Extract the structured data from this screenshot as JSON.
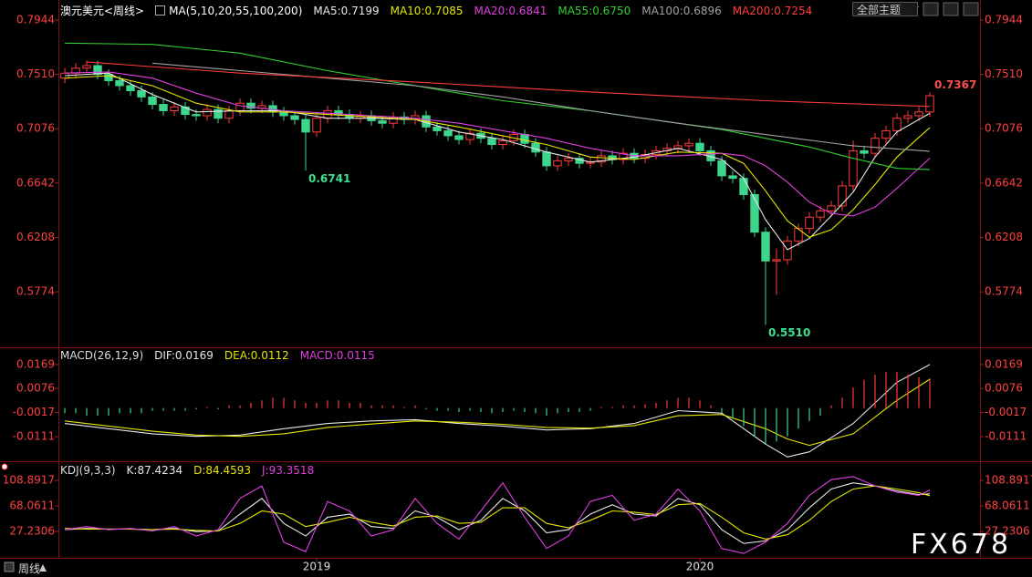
{
  "ui": {
    "theme_menu": "全部主题",
    "timeframe": "周线",
    "watermark": "FX678"
  },
  "chart_data": [
    {
      "type": "candlestick",
      "title": "澳元美元<周线>",
      "subtitle": "MA(5,10,20,55,100,200)",
      "up_color": "#ff3c3c",
      "down_color": "#3ed68c",
      "open": [
        0.748,
        0.752,
        0.756,
        0.758,
        0.751,
        0.746,
        0.742,
        0.738,
        0.733,
        0.727,
        0.722,
        0.725,
        0.719,
        0.718,
        0.723,
        0.716,
        0.722,
        0.728,
        0.724,
        0.726,
        0.721,
        0.718,
        0.715,
        0.705,
        0.716,
        0.722,
        0.719,
        0.716,
        0.718,
        0.714,
        0.712,
        0.717,
        0.715,
        0.718,
        0.709,
        0.706,
        0.702,
        0.699,
        0.704,
        0.7,
        0.695,
        0.698,
        0.703,
        0.696,
        0.689,
        0.678,
        0.682,
        0.684,
        0.68,
        0.681,
        0.686,
        0.683,
        0.688,
        0.684,
        0.687,
        0.69,
        0.692,
        0.694,
        0.696,
        0.69,
        0.682,
        0.67,
        0.668,
        0.655,
        0.625,
        0.602,
        0.603,
        0.618,
        0.628,
        0.637,
        0.642,
        0.646,
        0.662,
        0.69,
        0.688,
        0.7,
        0.706,
        0.716,
        0.718,
        0.721
      ],
      "high": [
        0.756,
        0.76,
        0.762,
        0.762,
        0.755,
        0.75,
        0.746,
        0.742,
        0.737,
        0.731,
        0.729,
        0.729,
        0.723,
        0.727,
        0.727,
        0.726,
        0.732,
        0.732,
        0.73,
        0.73,
        0.725,
        0.722,
        0.719,
        0.72,
        0.726,
        0.726,
        0.723,
        0.722,
        0.722,
        0.718,
        0.721,
        0.721,
        0.722,
        0.722,
        0.713,
        0.71,
        0.706,
        0.708,
        0.708,
        0.704,
        0.702,
        0.707,
        0.707,
        0.7,
        0.693,
        0.686,
        0.688,
        0.688,
        0.685,
        0.69,
        0.69,
        0.692,
        0.692,
        0.691,
        0.694,
        0.696,
        0.698,
        0.7,
        0.7,
        0.694,
        0.686,
        0.674,
        0.672,
        0.659,
        0.629,
        0.612,
        0.622,
        0.632,
        0.641,
        0.646,
        0.65,
        0.666,
        0.698,
        0.694,
        0.704,
        0.71,
        0.72,
        0.722,
        0.725,
        0.7367
      ],
      "low": [
        0.744,
        0.748,
        0.752,
        0.747,
        0.742,
        0.738,
        0.734,
        0.729,
        0.723,
        0.718,
        0.718,
        0.715,
        0.714,
        0.714,
        0.712,
        0.712,
        0.718,
        0.72,
        0.72,
        0.717,
        0.714,
        0.711,
        0.6741,
        0.701,
        0.712,
        0.715,
        0.712,
        0.712,
        0.71,
        0.708,
        0.708,
        0.711,
        0.711,
        0.705,
        0.702,
        0.698,
        0.695,
        0.695,
        0.696,
        0.691,
        0.691,
        0.694,
        0.692,
        0.685,
        0.674,
        0.674,
        0.678,
        0.676,
        0.676,
        0.677,
        0.679,
        0.679,
        0.68,
        0.68,
        0.683,
        0.686,
        0.688,
        0.69,
        0.686,
        0.678,
        0.666,
        0.664,
        0.651,
        0.621,
        0.551,
        0.575,
        0.599,
        0.614,
        0.624,
        0.633,
        0.638,
        0.642,
        0.658,
        0.684,
        0.684,
        0.696,
        0.702,
        0.712,
        0.714,
        0.717
      ],
      "close": [
        0.752,
        0.756,
        0.758,
        0.751,
        0.746,
        0.742,
        0.738,
        0.733,
        0.727,
        0.722,
        0.725,
        0.719,
        0.718,
        0.723,
        0.716,
        0.722,
        0.728,
        0.724,
        0.726,
        0.721,
        0.718,
        0.715,
        0.705,
        0.716,
        0.722,
        0.719,
        0.716,
        0.718,
        0.714,
        0.712,
        0.717,
        0.715,
        0.718,
        0.709,
        0.706,
        0.702,
        0.699,
        0.704,
        0.7,
        0.695,
        0.698,
        0.703,
        0.696,
        0.689,
        0.678,
        0.682,
        0.684,
        0.68,
        0.681,
        0.686,
        0.683,
        0.688,
        0.684,
        0.687,
        0.69,
        0.692,
        0.694,
        0.696,
        0.69,
        0.682,
        0.67,
        0.668,
        0.655,
        0.625,
        0.602,
        0.603,
        0.618,
        0.628,
        0.637,
        0.642,
        0.646,
        0.662,
        0.69,
        0.688,
        0.7,
        0.706,
        0.716,
        0.718,
        0.721,
        0.734
      ],
      "high_labels": [
        {
          "x": 79,
          "text": "0.7367"
        }
      ],
      "low_labels": [
        {
          "x": 22,
          "text": "0.6741"
        },
        {
          "x": 64,
          "text": "0.5510"
        }
      ],
      "series": [
        {
          "name": "MA5:0.7199",
          "color": "#e8e8e8",
          "x": [
            0,
            4,
            8,
            12,
            16,
            20,
            24,
            28,
            32,
            36,
            40,
            44,
            48,
            52,
            56,
            60,
            62,
            64,
            66,
            68,
            70,
            72,
            74,
            76,
            79
          ],
          "values": [
            0.75,
            0.752,
            0.735,
            0.721,
            0.722,
            0.722,
            0.716,
            0.716,
            0.715,
            0.705,
            0.699,
            0.689,
            0.681,
            0.685,
            0.692,
            0.683,
            0.668,
            0.635,
            0.611,
            0.62,
            0.638,
            0.657,
            0.685,
            0.705,
            0.7199
          ]
        },
        {
          "name": "MA10:0.7085",
          "color": "#e6e600",
          "x": [
            0,
            4,
            8,
            12,
            16,
            20,
            24,
            28,
            32,
            36,
            40,
            44,
            48,
            52,
            56,
            60,
            62,
            64,
            66,
            68,
            70,
            72,
            74,
            76,
            79
          ],
          "values": [
            0.748,
            0.75,
            0.742,
            0.728,
            0.721,
            0.721,
            0.719,
            0.717,
            0.715,
            0.709,
            0.702,
            0.695,
            0.685,
            0.683,
            0.689,
            0.688,
            0.68,
            0.658,
            0.634,
            0.621,
            0.627,
            0.643,
            0.663,
            0.685,
            0.7085
          ]
        },
        {
          "name": "MA20:0.6841",
          "color": "#e040e0",
          "x": [
            0,
            4,
            8,
            12,
            16,
            20,
            24,
            28,
            32,
            36,
            40,
            44,
            48,
            52,
            56,
            60,
            62,
            64,
            66,
            68,
            70,
            72,
            74,
            76,
            79
          ],
          "values": [
            0.752,
            0.753,
            0.748,
            0.736,
            0.726,
            0.722,
            0.72,
            0.718,
            0.716,
            0.712,
            0.706,
            0.7,
            0.692,
            0.686,
            0.686,
            0.688,
            0.686,
            0.678,
            0.665,
            0.649,
            0.64,
            0.638,
            0.645,
            0.66,
            0.6841
          ]
        },
        {
          "name": "MA55:0.6750",
          "color": "#30d030",
          "x": [
            0,
            8,
            16,
            24,
            32,
            40,
            48,
            56,
            60,
            64,
            68,
            72,
            76,
            79
          ],
          "values": [
            0.776,
            0.775,
            0.768,
            0.754,
            0.742,
            0.73,
            0.722,
            0.712,
            0.707,
            0.7,
            0.693,
            0.684,
            0.676,
            0.675
          ]
        },
        {
          "name": "MA100:0.6896",
          "color": "#a0a0a0",
          "x": [
            8,
            16,
            24,
            32,
            40,
            48,
            56,
            64,
            72,
            79
          ],
          "values": [
            0.76,
            0.754,
            0.748,
            0.742,
            0.733,
            0.722,
            0.712,
            0.703,
            0.694,
            0.6896
          ]
        },
        {
          "name": "MA200:0.7254",
          "color": "#ff3c3c",
          "x": [
            2,
            16,
            32,
            48,
            64,
            79
          ],
          "values": [
            0.761,
            0.752,
            0.745,
            0.737,
            0.73,
            0.7254
          ]
        }
      ],
      "xlim": [
        -0.5,
        83.5
      ],
      "ylim": [
        0.5338,
        0.7944
      ],
      "yticks": [
        0.5774,
        0.6208,
        0.6642,
        0.7076,
        {
          "value": 0.751,
          "label": "0.7510"
        },
        0.7944
      ],
      "xticks": [
        {
          "value": 23,
          "label": "2019"
        },
        {
          "value": 58,
          "label": "2020"
        }
      ]
    },
    {
      "type": "macd",
      "title": "MACD(26,12,9)",
      "series": [
        {
          "name": "DIF:0.0169",
          "color": "#e8e8e8",
          "x": [
            0,
            4,
            8,
            12,
            16,
            20,
            24,
            28,
            32,
            36,
            40,
            44,
            48,
            52,
            56,
            60,
            64,
            66,
            68,
            72,
            76,
            79
          ],
          "values": [
            -0.006,
            -0.008,
            -0.01,
            -0.011,
            -0.0105,
            -0.008,
            -0.006,
            -0.005,
            -0.0045,
            -0.006,
            -0.007,
            -0.0085,
            -0.008,
            -0.006,
            -0.001,
            -0.002,
            -0.014,
            -0.019,
            -0.017,
            -0.006,
            0.01,
            0.0169
          ]
        },
        {
          "name": "DEA:0.0112",
          "color": "#e6e600",
          "x": [
            0,
            4,
            8,
            12,
            16,
            20,
            24,
            28,
            32,
            36,
            40,
            44,
            48,
            52,
            56,
            60,
            64,
            66,
            68,
            72,
            76,
            79
          ],
          "values": [
            -0.005,
            -0.007,
            -0.009,
            -0.0105,
            -0.011,
            -0.01,
            -0.0075,
            -0.0062,
            -0.005,
            -0.0055,
            -0.0063,
            -0.0075,
            -0.0078,
            -0.0068,
            -0.003,
            -0.0025,
            -0.008,
            -0.012,
            -0.0145,
            -0.01,
            0.003,
            0.0112
          ]
        },
        {
          "name": "MACD:0.0115",
          "color": "#e040e0",
          "style": "bars",
          "up_color": "#ff3c3c",
          "down_color": "#3ed68c",
          "values": [
            -0.002,
            -0.002,
            -0.003,
            -0.003,
            -0.003,
            -0.002,
            -0.002,
            -0.002,
            -0.001,
            -0.001,
            -0.001,
            -0.001,
            -0.0005,
            0.0005,
            -0.0005,
            0.001,
            0.001,
            0.002,
            0.003,
            0.004,
            0.004,
            0.003,
            0.002,
            0.002,
            0.003,
            0.003,
            0.002,
            0.002,
            0.001,
            0.001,
            0.001,
            0.0005,
            0.001,
            -0.0005,
            -0.001,
            -0.001,
            -0.0015,
            -0.001,
            -0.0015,
            -0.002,
            -0.0015,
            -0.001,
            -0.0015,
            -0.002,
            -0.003,
            -0.002,
            -0.0015,
            -0.0015,
            -0.001,
            0.0005,
            0.0005,
            0.001,
            0.001,
            0.0015,
            0.002,
            0.003,
            0.004,
            0.004,
            0.003,
            0.001,
            -0.002,
            -0.004,
            -0.007,
            -0.011,
            -0.014,
            -0.013,
            -0.011,
            -0.008,
            -0.005,
            -0.003,
            0.001,
            0.004,
            0.008,
            0.011,
            0.013,
            0.014,
            0.014,
            0.013,
            0.012,
            0.0115
          ]
        }
      ],
      "xlim": [
        -0.5,
        83.5
      ],
      "ylim": [
        -0.0203,
        0.0229
      ],
      "yticks": [
        -0.0111,
        -0.0017,
        0.0076,
        0.0169
      ]
    },
    {
      "type": "kdj",
      "title": "KDJ(9,3,3)",
      "series": [
        {
          "name": "K:87.4234",
          "color": "#e8e8e8",
          "x": [
            0,
            2,
            4,
            6,
            8,
            10,
            12,
            14,
            16,
            18,
            20,
            22,
            24,
            26,
            28,
            30,
            32,
            34,
            36,
            38,
            40,
            42,
            44,
            46,
            48,
            50,
            52,
            54,
            56,
            58,
            60,
            62,
            64,
            66,
            68,
            70,
            72,
            74,
            76,
            78,
            79
          ],
          "values": [
            30,
            32,
            31,
            31,
            30,
            32,
            27,
            28,
            55,
            80,
            40,
            20,
            50,
            55,
            35,
            32,
            60,
            50,
            30,
            45,
            80,
            60,
            25,
            30,
            55,
            70,
            55,
            52,
            80,
            70,
            30,
            8,
            12,
            30,
            65,
            95,
            105,
            100,
            92,
            86,
            87.4234
          ]
        },
        {
          "name": "D:84.4593",
          "color": "#e6e600",
          "x": [
            0,
            2,
            4,
            6,
            8,
            10,
            12,
            14,
            16,
            18,
            20,
            22,
            24,
            26,
            28,
            30,
            32,
            34,
            36,
            38,
            40,
            42,
            44,
            46,
            48,
            50,
            52,
            54,
            56,
            58,
            60,
            62,
            64,
            66,
            68,
            70,
            72,
            74,
            76,
            78,
            79
          ],
          "values": [
            32,
            31,
            31,
            31,
            30,
            31,
            29,
            28,
            40,
            60,
            55,
            35,
            42,
            50,
            42,
            36,
            50,
            52,
            40,
            42,
            65,
            65,
            40,
            33,
            45,
            60,
            58,
            54,
            70,
            72,
            50,
            25,
            15,
            22,
            45,
            75,
            95,
            100,
            95,
            89,
            84.4593
          ]
        },
        {
          "name": "J:93.3518",
          "color": "#e040e0",
          "x": [
            0,
            2,
            4,
            6,
            8,
            10,
            12,
            14,
            16,
            18,
            20,
            22,
            24,
            26,
            28,
            30,
            32,
            34,
            36,
            38,
            40,
            42,
            44,
            46,
            48,
            50,
            52,
            54,
            56,
            58,
            60,
            62,
            64,
            66,
            68,
            70,
            72,
            74,
            76,
            78,
            79
          ],
          "values": [
            30,
            35,
            30,
            32,
            28,
            35,
            20,
            30,
            80,
            100,
            10,
            -5,
            75,
            60,
            20,
            30,
            80,
            40,
            15,
            60,
            105,
            50,
            0,
            20,
            75,
            85,
            45,
            55,
            95,
            60,
            0,
            -8,
            10,
            40,
            85,
            110,
            115,
            100,
            90,
            85,
            93.3518
          ]
        }
      ],
      "xlim": [
        -0.5,
        83.5
      ],
      "ylim": [
        -15.05,
        133.68
      ],
      "yticks": [
        27.2306,
        68.0611,
        108.8917
      ]
    }
  ]
}
